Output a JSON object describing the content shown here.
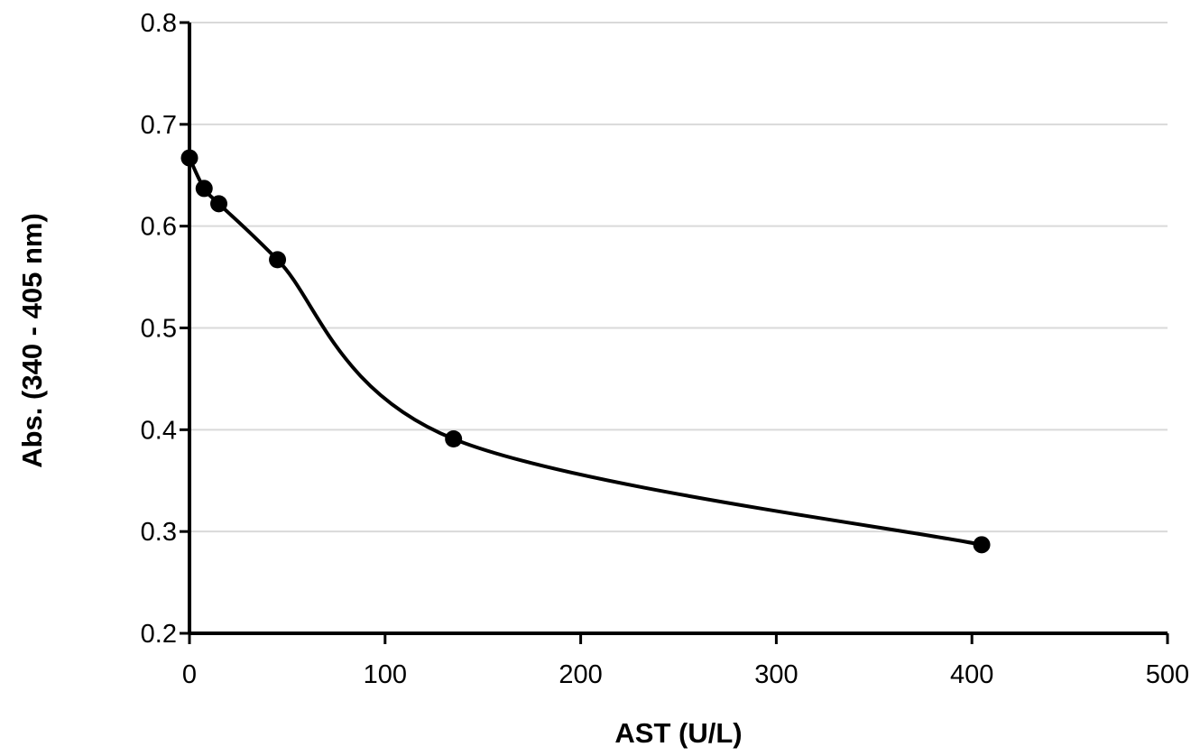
{
  "chart_data": {
    "type": "scatter",
    "title": "",
    "xlabel": "AST (U/L)",
    "ylabel": "Abs. (340 - 405 nm)",
    "xlim": [
      0,
      500
    ],
    "ylim": [
      0.2,
      0.8
    ],
    "x_ticks": [
      "0",
      "100",
      "200",
      "300",
      "400",
      "500"
    ],
    "y_ticks": [
      "0.2",
      "0.3",
      "0.4",
      "0.5",
      "0.6",
      "0.7",
      "0.8"
    ],
    "grid": "horizontal",
    "smoothed_line": true,
    "series": [
      {
        "x": [
          0,
          7.5,
          15,
          45,
          135,
          405
        ],
        "y": [
          0.667,
          0.637,
          0.622,
          0.567,
          0.391,
          0.287
        ]
      }
    ],
    "colors": {
      "line": "#000000",
      "marker": "#000000",
      "grid": "#d9d9d9"
    }
  }
}
